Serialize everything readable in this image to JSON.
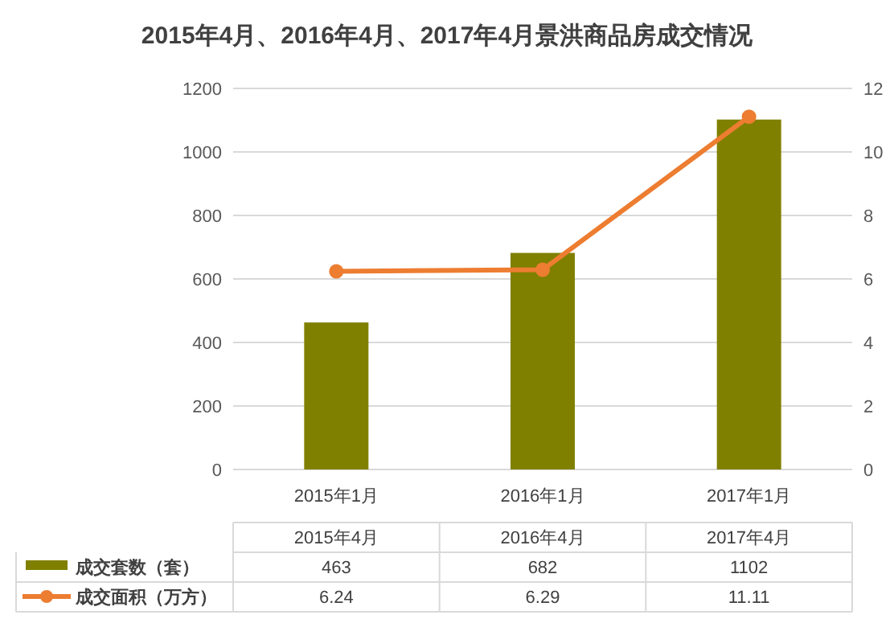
{
  "chart_data": {
    "type": "bar",
    "title": "2015年4月、2016年4月、2017年4月景洪商品房成交情况",
    "categories": [
      "2015年1月",
      "2016年1月",
      "2017年1月"
    ],
    "series": [
      {
        "name": "成交套数（套）",
        "color": "#808000",
        "values": [
          463,
          682,
          1102
        ]
      },
      {
        "name": "成交面积（万方）",
        "type": "line",
        "axis": "y2",
        "color": "#ed7d31",
        "values": [
          6.24,
          6.29,
          11.11
        ]
      }
    ],
    "ylim": [
      0,
      1200
    ],
    "yticks": [
      0,
      200,
      400,
      600,
      800,
      1000,
      1200
    ],
    "y2lim": [
      0,
      12
    ],
    "y2ticks": [
      0,
      2,
      4,
      6,
      8,
      10,
      12
    ],
    "grid": "y",
    "marker": "circle",
    "line_style": "solid",
    "data_labels": true,
    "legend": "bottom",
    "annotations": [
      "2015年4月",
      "2016年4月",
      "2017年4月"
    ]
  }
}
